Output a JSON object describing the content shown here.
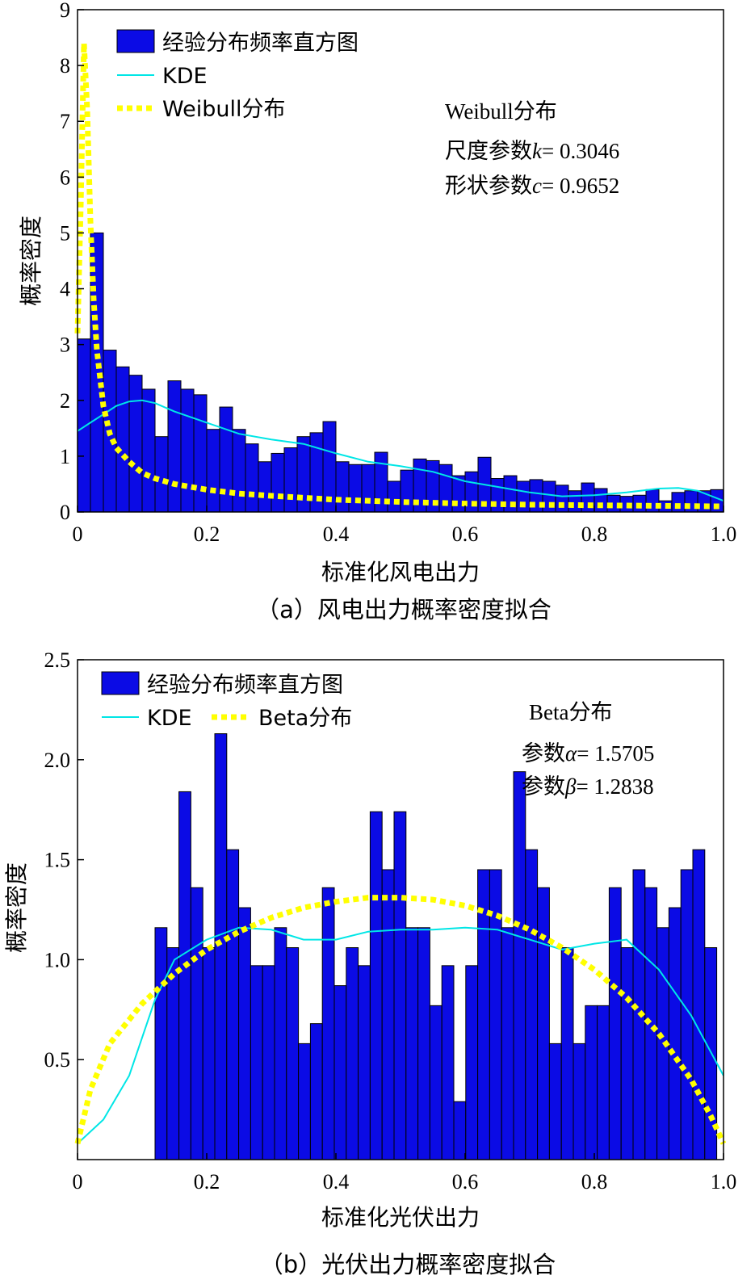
{
  "chart_data": [
    {
      "type": "bar",
      "subplot_caption": "（a）风电出力概率密度拟合",
      "xlabel": "标准化风电出力",
      "ylabel": "概率密度",
      "xlim": [
        0,
        1
      ],
      "ylim": [
        0,
        9
      ],
      "xticks": [
        "0",
        "0.2",
        "0.4",
        "0.6",
        "0.8",
        "1.0"
      ],
      "yticks": [
        "0",
        "1",
        "2",
        "3",
        "4",
        "5",
        "6",
        "7",
        "8",
        "9"
      ],
      "legend": {
        "position": "top-left",
        "entries": [
          "经验分布频率直方图",
          "KDE",
          "Weibull分布"
        ]
      },
      "annotation": {
        "title": "Weibull分布",
        "line1_prefix": "尺度参数",
        "line1_sym": "k",
        "line1_value": "= 0.3046",
        "line2_prefix": "形状参数",
        "line2_sym": "c",
        "line2_value": "= 0.9652"
      },
      "series": [
        {
          "name": "经验分布频率直方图",
          "kind": "histogram",
          "bin_start": 0.0,
          "bin_width": 0.02,
          "values": [
            3.1,
            5.0,
            2.9,
            2.6,
            2.45,
            2.2,
            1.35,
            2.35,
            2.2,
            2.1,
            1.48,
            1.88,
            1.48,
            1.22,
            0.9,
            1.05,
            1.15,
            1.35,
            1.42,
            1.62,
            0.9,
            0.85,
            0.85,
            1.07,
            0.55,
            0.75,
            0.95,
            0.92,
            0.85,
            0.65,
            0.72,
            0.98,
            0.6,
            0.65,
            0.55,
            0.58,
            0.55,
            0.48,
            0.38,
            0.52,
            0.42,
            0.3,
            0.28,
            0.3,
            0.4,
            0.2,
            0.35,
            0.38,
            0.38,
            0.4,
            0.2,
            1.05,
            0.82,
            0.15,
            0.38
          ]
        },
        {
          "name": "KDE",
          "kind": "line",
          "color": "#00ffff",
          "x": [
            0.0,
            0.02,
            0.04,
            0.06,
            0.08,
            0.1,
            0.12,
            0.15,
            0.2,
            0.25,
            0.3,
            0.35,
            0.4,
            0.45,
            0.5,
            0.55,
            0.6,
            0.65,
            0.7,
            0.75,
            0.8,
            0.85,
            0.9,
            0.93,
            0.96,
            1.0
          ],
          "y": [
            1.45,
            1.6,
            1.75,
            1.9,
            1.98,
            2.0,
            1.95,
            1.8,
            1.6,
            1.4,
            1.3,
            1.22,
            1.05,
            0.9,
            0.82,
            0.72,
            0.55,
            0.45,
            0.35,
            0.28,
            0.3,
            0.35,
            0.42,
            0.43,
            0.38,
            0.2
          ]
        },
        {
          "name": "Weibull分布",
          "kind": "line",
          "color": "#ffff00",
          "x": [
            0.0,
            0.005,
            0.01,
            0.015,
            0.02,
            0.025,
            0.03,
            0.04,
            0.05,
            0.06,
            0.08,
            0.1,
            0.12,
            0.15,
            0.2,
            0.25,
            0.3,
            0.4,
            0.5,
            0.6,
            0.7,
            0.8,
            0.9,
            1.0
          ],
          "y": [
            3.2,
            5.5,
            8.4,
            7.2,
            5.2,
            3.8,
            2.9,
            1.9,
            1.4,
            1.15,
            0.9,
            0.7,
            0.6,
            0.5,
            0.4,
            0.33,
            0.29,
            0.22,
            0.18,
            0.15,
            0.13,
            0.12,
            0.11,
            0.1
          ]
        }
      ]
    },
    {
      "type": "bar",
      "subplot_caption": "（b）光伏出力概率密度拟合",
      "xlabel": "标准化光伏出力",
      "ylabel": "概率密度",
      "xlim": [
        0,
        1
      ],
      "ylim": [
        0,
        2.5
      ],
      "xticks": [
        "0",
        "0.2",
        "0.4",
        "0.6",
        "0.8",
        "1.0"
      ],
      "yticks": [
        "0.5",
        "1.0",
        "1.5",
        "2.0",
        "2.5"
      ],
      "legend": {
        "position": "top-left",
        "entries": [
          "经验分布频率直方图",
          "KDE",
          "Beta分布"
        ]
      },
      "annotation": {
        "title": "Beta分布",
        "line1_prefix": "参数",
        "line1_sym": "α",
        "line1_value": "= 1.5705",
        "line2_prefix": "参数",
        "line2_sym": "β",
        "line2_value": "= 1.2838"
      },
      "series": [
        {
          "name": "经验分布频率直方图",
          "kind": "histogram",
          "bin_start": 0.12,
          "bin_width": 0.0185,
          "values": [
            1.16,
            1.06,
            1.84,
            1.36,
            1.06,
            2.13,
            1.55,
            1.26,
            0.97,
            0.97,
            1.16,
            1.06,
            0.58,
            0.68,
            1.36,
            0.87,
            1.06,
            0.97,
            1.74,
            1.45,
            1.74,
            1.16,
            1.16,
            0.77,
            0.97,
            0.29,
            0.97,
            1.45,
            1.45,
            1.16,
            1.94,
            1.55,
            1.36,
            0.58,
            1.06,
            0.58,
            0.77,
            0.77,
            1.36,
            1.06,
            1.45,
            1.36,
            1.16,
            1.26,
            1.45,
            1.55,
            1.06
          ]
        },
        {
          "name": "KDE",
          "kind": "line",
          "color": "#00ffff",
          "x": [
            0.0,
            0.04,
            0.08,
            0.12,
            0.15,
            0.2,
            0.25,
            0.3,
            0.35,
            0.4,
            0.45,
            0.5,
            0.55,
            0.6,
            0.65,
            0.7,
            0.75,
            0.8,
            0.85,
            0.9,
            0.95,
            1.0
          ],
          "y": [
            0.08,
            0.2,
            0.42,
            0.8,
            1.0,
            1.1,
            1.16,
            1.15,
            1.1,
            1.1,
            1.14,
            1.15,
            1.15,
            1.16,
            1.15,
            1.1,
            1.05,
            1.08,
            1.1,
            0.95,
            0.72,
            0.42
          ]
        },
        {
          "name": "Beta分布",
          "kind": "line",
          "color": "#ffff00",
          "x": [
            0.0,
            0.02,
            0.05,
            0.1,
            0.15,
            0.2,
            0.25,
            0.3,
            0.35,
            0.4,
            0.45,
            0.5,
            0.55,
            0.6,
            0.65,
            0.7,
            0.75,
            0.8,
            0.85,
            0.9,
            0.95,
            0.98,
            1.0
          ],
          "y": [
            0.08,
            0.35,
            0.58,
            0.78,
            0.93,
            1.05,
            1.14,
            1.21,
            1.26,
            1.29,
            1.31,
            1.31,
            1.3,
            1.27,
            1.22,
            1.15,
            1.06,
            0.95,
            0.81,
            0.63,
            0.4,
            0.22,
            0.08
          ]
        }
      ]
    }
  ]
}
